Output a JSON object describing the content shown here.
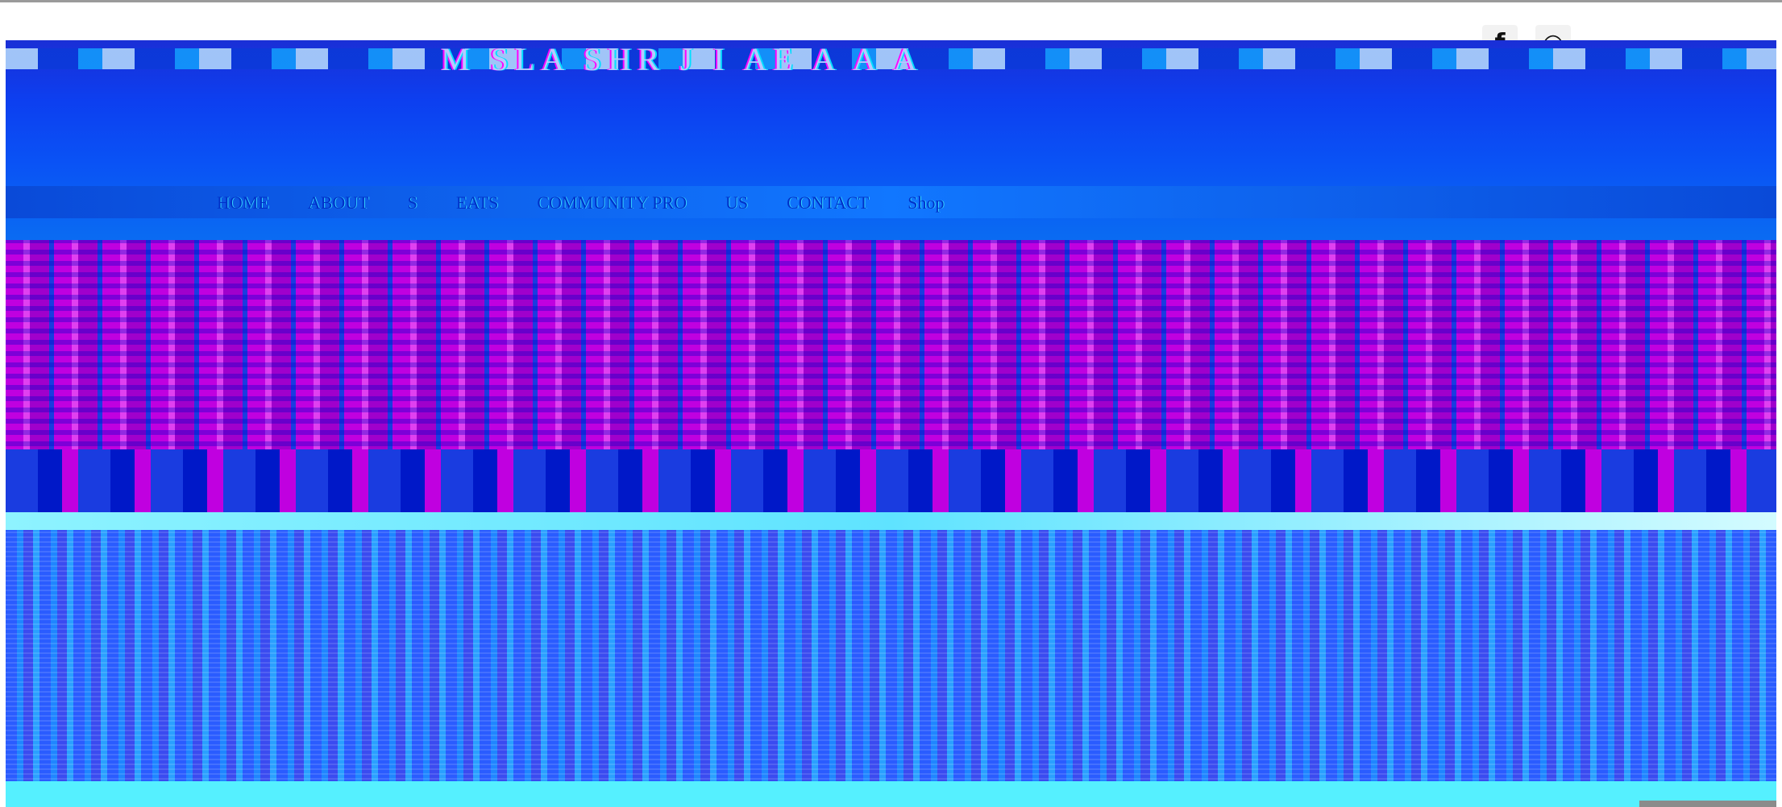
{
  "social": {
    "facebook_glyph": "f",
    "instagram_glyph": "◎"
  },
  "header": {
    "logo_text": "M SLA SHR J I AE A A A"
  },
  "nav": {
    "items": [
      {
        "label": "HOME"
      },
      {
        "label": "ABOUT"
      },
      {
        "label": "S"
      },
      {
        "label": "EATS"
      },
      {
        "label": "COMMUNITY PRO"
      },
      {
        "label": "US"
      },
      {
        "label": "CONTACT"
      },
      {
        "label": "Shop"
      }
    ]
  },
  "hero": {
    "tagline": ""
  },
  "colors": {
    "nav_bg": "#1177ff",
    "hero_magenta": "#c000e0",
    "lower_blue": "#2a5cff",
    "cyan": "#55f0ff"
  }
}
